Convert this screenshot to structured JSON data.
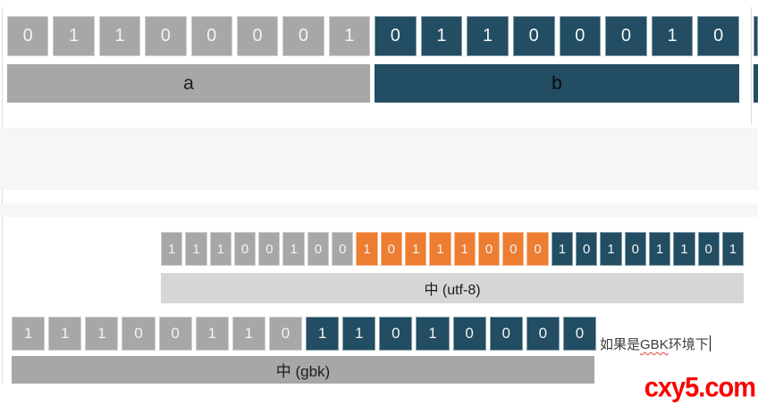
{
  "slide1": {
    "byte_a": {
      "groups": [
        {
          "color": "gray",
          "values": [
            "0",
            "1",
            "1",
            "0",
            "0",
            "0",
            "0",
            "1"
          ]
        }
      ],
      "label": "a"
    },
    "byte_b": {
      "groups": [
        {
          "color": "dark_blue",
          "values": [
            "0",
            "1",
            "1",
            "0",
            "0",
            "0",
            "1",
            "0"
          ]
        }
      ],
      "label": "b"
    }
  },
  "slide2": {
    "utf8": {
      "groups": [
        {
          "color": "gray",
          "values": [
            "1",
            "1",
            "1",
            "0",
            "0",
            "1",
            "0",
            "0"
          ]
        },
        {
          "color": "orange",
          "values": [
            "1",
            "0",
            "1",
            "1",
            "1",
            "0",
            "0",
            "0"
          ]
        },
        {
          "color": "dark_blue",
          "values": [
            "1",
            "0",
            "1",
            "0",
            "1",
            "1",
            "0",
            "1"
          ]
        }
      ],
      "label": "中 (utf-8)"
    },
    "gbk": {
      "groups": [
        {
          "color": "gray",
          "values": [
            "1",
            "1",
            "1",
            "0",
            "0",
            "1",
            "1",
            "0"
          ]
        },
        {
          "color": "dark_blue",
          "values": [
            "1",
            "1",
            "0",
            "1",
            "0",
            "0",
            "0",
            "0"
          ]
        }
      ],
      "label": "中 (gbk)"
    },
    "note": {
      "pre": "如果是",
      "keyword": "GBK",
      "post": "环境下"
    }
  },
  "watermark": "cxy5.com",
  "colors": {
    "gray": "#a7a7a7",
    "dark_blue": "#224d62",
    "orange": "#ed7d31",
    "light_bar": "#d6d6d9",
    "band": "#f6f6f7",
    "watermark_red": "#fb0000"
  }
}
